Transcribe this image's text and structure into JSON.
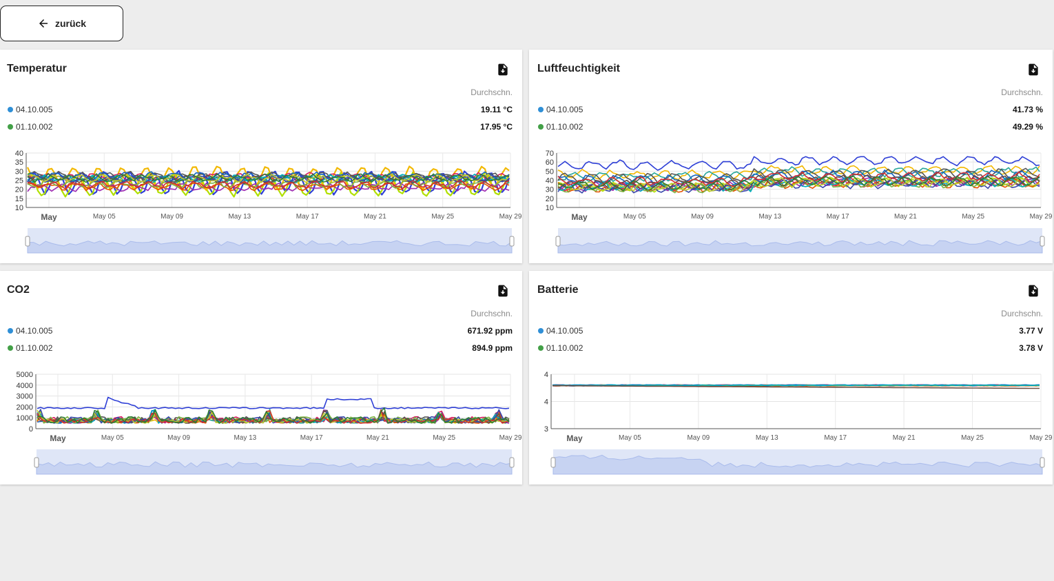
{
  "back_button": {
    "label": "zurück"
  },
  "average_label": "Durchschn.",
  "x_ticks": [
    "May",
    "May 05",
    "May 09",
    "May 13",
    "May 17",
    "May 21",
    "May 25",
    "May 29"
  ],
  "sensors": [
    {
      "name": "04.10.005",
      "color": "#2f8fd6"
    },
    {
      "name": "01.10.002",
      "color": "#43a047"
    }
  ],
  "series_colors": [
    "#2e3fd6",
    "#b0e000",
    "#f2b800",
    "#d81b60",
    "#26a69a",
    "#9c27b0",
    "#555555",
    "#1565c0",
    "#e65100",
    "#7cb342",
    "#00acc1",
    "#6d4c41",
    "#3949ab",
    "#c0ca33",
    "#d32f2f",
    "#2e7d32"
  ],
  "panels": [
    {
      "title": "Temperatur",
      "values": [
        "19.11 °C",
        "17.95 °C"
      ],
      "chart_data": {
        "type": "line",
        "x": "May 01 – May 29",
        "y_ticks": [
          "40",
          "35",
          "30",
          "25",
          "20",
          "15",
          "10"
        ],
        "ylim": [
          10,
          40
        ],
        "series_count": 16,
        "typical_range": [
          15,
          36
        ]
      }
    },
    {
      "title": "Luftfeuchtigkeit",
      "values": [
        "41.73 %",
        "49.29 %"
      ],
      "chart_data": {
        "type": "line",
        "x": "May 01 – May 29",
        "y_ticks": [
          "70",
          "60",
          "50",
          "40",
          "30",
          "20",
          "10"
        ],
        "ylim": [
          10,
          70
        ],
        "series_count": 16,
        "typical_range": [
          18,
          66
        ]
      }
    },
    {
      "title": "CO2",
      "values": [
        "671.92 ppm",
        "894.9 ppm"
      ],
      "chart_data": {
        "type": "line",
        "x": "May 01 – May 29",
        "y_ticks": [
          "5000",
          "4000",
          "3000",
          "2000",
          "1000",
          "0"
        ],
        "ylim": [
          0,
          5000
        ],
        "series_count": 16,
        "typical_range": [
          400,
          4300
        ]
      }
    },
    {
      "title": "Batterie",
      "values": [
        "3.77 V",
        "3.78 V"
      ],
      "chart_data": {
        "type": "line",
        "x": "May 01 – May 29",
        "y_ticks": [
          "4",
          "4",
          "3"
        ],
        "ylim": [
          3,
          4
        ],
        "series_count": 12,
        "typical_range": [
          3.74,
          3.82
        ]
      }
    }
  ]
}
